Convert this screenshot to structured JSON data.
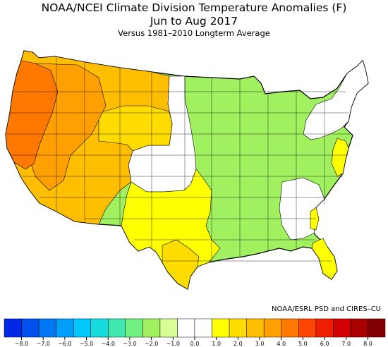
{
  "title": {
    "line1": "NOAA/NCEI Climate Division Temperature Anomalies (F)",
    "line2": "Jun to Aug 2017",
    "line3": "Versus 1981–2010 Longterm Average"
  },
  "credit": "NOAA/ESRL PSD and CIRES–CU",
  "legend": {
    "colors": [
      "#0028e6",
      "#0050f0",
      "#0078f5",
      "#00a0fa",
      "#00c8fa",
      "#14dcdc",
      "#40e8b0",
      "#70f080",
      "#a0f060",
      "#d8ff96",
      "#ffffff",
      "#ffffff",
      "#ffff00",
      "#ffdc00",
      "#ffbe00",
      "#ffa000",
      "#ff7800",
      "#ff4600",
      "#f01e00",
      "#d20000",
      "#aa0000",
      "#820000"
    ],
    "ticks": [
      "−8.0",
      "−7.0",
      "−6.0",
      "−5.0",
      "−4.0",
      "−3.0",
      "−2.0",
      "−1.0",
      "0.0",
      "1.0",
      "2.0",
      "3.0",
      "4.0",
      "5.0",
      "6.0",
      "7.0",
      "8.0"
    ]
  },
  "regions": [
    {
      "name": "Pacific coast",
      "anomaly": 4.0,
      "color": "#ff7800"
    },
    {
      "name": "Pacific Northwest interior",
      "anomaly": 3.0,
      "color": "#ffa000"
    },
    {
      "name": "Northern Rockies / Great Basin",
      "anomaly": 2.5,
      "color": "#ffbe00"
    },
    {
      "name": "Southwest / Arizona",
      "anomaly": 2.5,
      "color": "#ffbe00"
    },
    {
      "name": "Texas coast",
      "anomaly": 1.5,
      "color": "#ffdc00"
    },
    {
      "name": "Southern Plains",
      "anomaly": 0.5,
      "color": "#ffff00"
    },
    {
      "name": "Central / Mississippi Valley",
      "anomaly": -0.5,
      "color": "#a0f060"
    },
    {
      "name": "Great Lakes",
      "anomaly": -0.5,
      "color": "#a0f060"
    },
    {
      "name": "Mid-Atlantic coast",
      "anomaly": 1.0,
      "color": "#ffff00"
    },
    {
      "name": "Florida",
      "anomaly": 1.0,
      "color": "#ffff00"
    },
    {
      "name": "Northeast",
      "anomaly": 0.0,
      "color": "#ffffff"
    }
  ]
}
